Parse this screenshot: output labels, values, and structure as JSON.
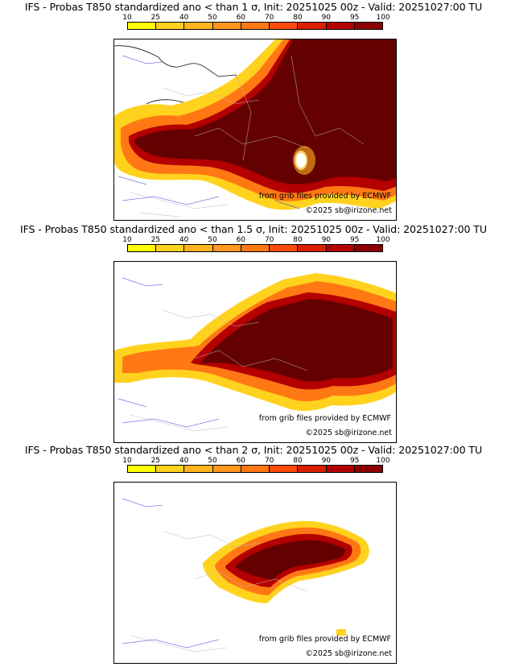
{
  "colorbar": {
    "ticks": [
      "10",
      "25",
      "40",
      "50",
      "60",
      "70",
      "80",
      "90",
      "95",
      "100"
    ],
    "colors": [
      "#ffff00",
      "#ffd21e",
      "#ffb41e",
      "#ff961e",
      "#ff7814",
      "#ff4b0a",
      "#dc1e00",
      "#b40000",
      "#8c0000",
      "#640000"
    ]
  },
  "panels": [
    {
      "title": "IFS - Probas T850  standardized ano < than 1 σ, Init: 20251025 00z - Valid: 20251027:00 TU",
      "credit_source": "from grib files provided by ECMWF",
      "credit_copyright": "©2025 sb@irizone.net"
    },
    {
      "title": "IFS - Probas T850  standardized ano < than 1.5 σ, Init: 20251025 00z - Valid: 20251027:00 TU",
      "credit_source": "from grib files provided by ECMWF",
      "credit_copyright": "©2025 sb@irizone.net"
    },
    {
      "title": "IFS - Probas T850  standardized ano < than 2 σ, Init: 20251025 00z - Valid: 20251027:00 TU",
      "credit_source": "from grib files provided by ECMWF",
      "credit_copyright": "©2025 sb@irizone.net"
    }
  ]
}
